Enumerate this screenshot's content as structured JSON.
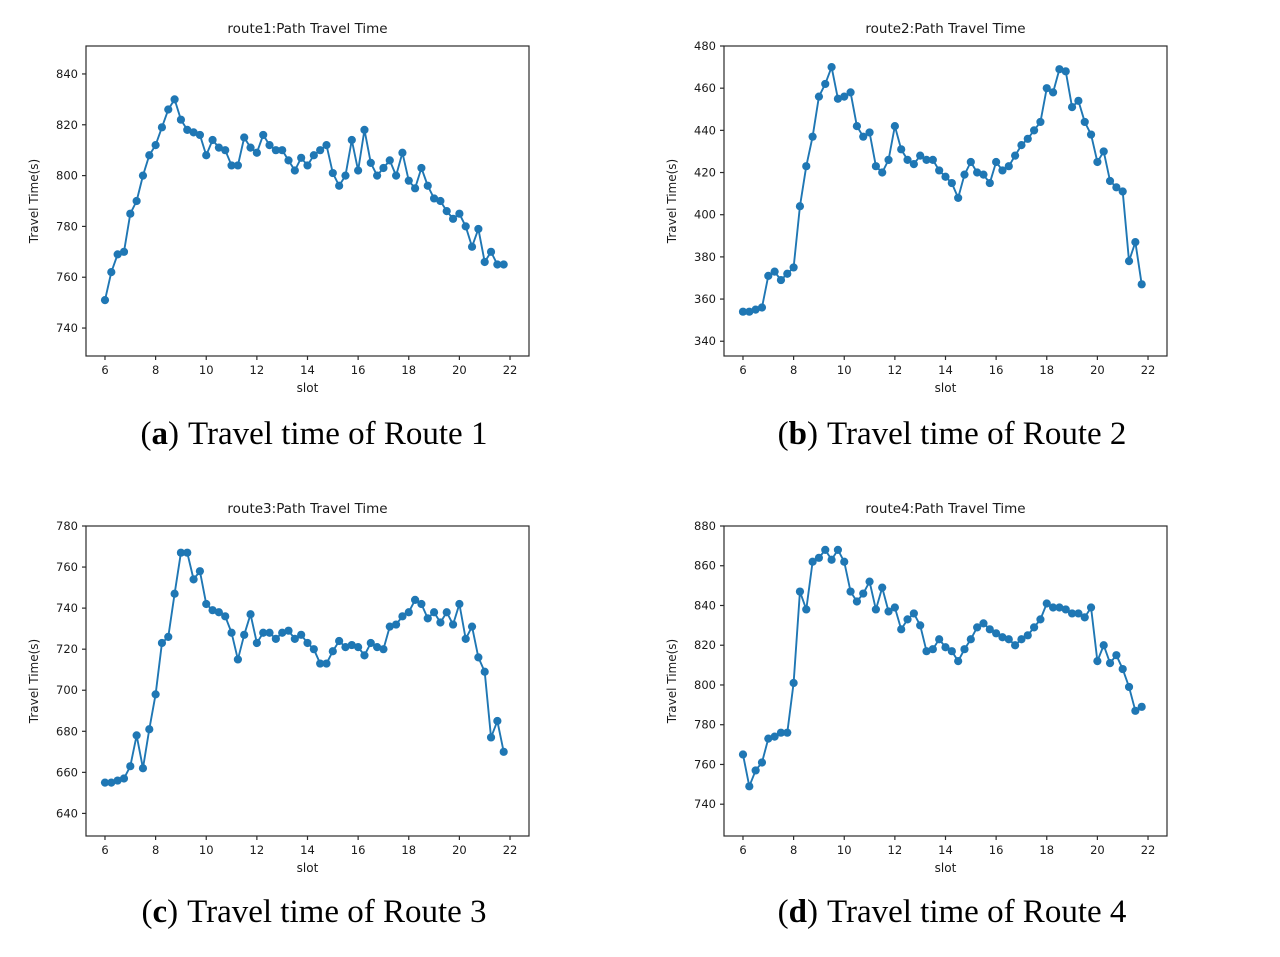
{
  "figure": {
    "captions": [
      {
        "open": "(",
        "letter": "a",
        "close": ")",
        "text": "Travel time of Route 1"
      },
      {
        "open": "(",
        "letter": "b",
        "close": ")",
        "text": "Travel time of Route 2"
      },
      {
        "open": "(",
        "letter": "c",
        "close": ")",
        "text": "Travel time of Route 3"
      },
      {
        "open": "(",
        "letter": "d",
        "close": ")",
        "text": "Travel time of Route 4"
      }
    ]
  },
  "style": {
    "line_color": "#1f77b4",
    "text_color": "#1a1a1a",
    "spine_color": "#2b2b2b",
    "background": "#ffffff"
  },
  "chart_data": [
    {
      "id": "route1",
      "type": "line",
      "title": "route1:Path Travel Time",
      "xlabel": "slot",
      "ylabel": "Travel Time(s)",
      "marker": "circle",
      "grid": false,
      "legend": "none",
      "x_start": 6.0,
      "x_step": 0.25,
      "xlim": [
        5.25,
        22.75
      ],
      "ylim": [
        729,
        851
      ],
      "xticks": [
        6,
        8,
        10,
        12,
        14,
        16,
        18,
        20,
        22
      ],
      "yticks": [
        740,
        760,
        780,
        800,
        820,
        840
      ],
      "values": [
        751,
        762,
        769,
        770,
        785,
        790,
        800,
        808,
        812,
        819,
        826,
        830,
        822,
        818,
        817,
        816,
        808,
        814,
        811,
        810,
        804,
        804,
        815,
        811,
        809,
        816,
        812,
        810,
        810,
        806,
        802,
        807,
        804,
        808,
        810,
        812,
        801,
        796,
        800,
        814,
        802,
        818,
        805,
        800,
        803,
        806,
        800,
        809,
        798,
        795,
        803,
        796,
        791,
        790,
        786,
        783,
        785,
        780,
        772,
        779,
        766,
        770,
        765,
        765
      ]
    },
    {
      "id": "route2",
      "type": "line",
      "title": "route2:Path Travel Time",
      "xlabel": "slot",
      "ylabel": "Travel Time(s)",
      "marker": "circle",
      "grid": false,
      "legend": "none",
      "x_start": 6.0,
      "x_step": 0.25,
      "xlim": [
        5.25,
        22.75
      ],
      "ylim": [
        333,
        480
      ],
      "xticks": [
        6,
        8,
        10,
        12,
        14,
        16,
        18,
        20,
        22
      ],
      "yticks": [
        340,
        360,
        380,
        400,
        420,
        440,
        460,
        480
      ],
      "values": [
        354,
        354,
        355,
        356,
        371,
        373,
        369,
        372,
        375,
        404,
        423,
        437,
        456,
        462,
        470,
        455,
        456,
        458,
        442,
        437,
        439,
        423,
        420,
        426,
        442,
        431,
        426,
        424,
        428,
        426,
        426,
        421,
        418,
        415,
        408,
        419,
        425,
        420,
        419,
        415,
        425,
        421,
        423,
        428,
        433,
        436,
        440,
        444,
        460,
        458,
        469,
        468,
        451,
        454,
        444,
        438,
        425,
        430,
        416,
        413,
        411,
        378,
        387,
        367
      ]
    },
    {
      "id": "route3",
      "type": "line",
      "title": "route3:Path Travel Time",
      "xlabel": "slot",
      "ylabel": "Travel Time(s)",
      "marker": "circle",
      "grid": false,
      "legend": "none",
      "x_start": 6.0,
      "x_step": 0.25,
      "xlim": [
        5.25,
        22.75
      ],
      "ylim": [
        629,
        780
      ],
      "xticks": [
        6,
        8,
        10,
        12,
        14,
        16,
        18,
        20,
        22
      ],
      "yticks": [
        640,
        660,
        680,
        700,
        720,
        740,
        760,
        780
      ],
      "values": [
        655,
        655,
        656,
        657,
        663,
        678,
        662,
        681,
        698,
        723,
        726,
        747,
        767,
        767,
        754,
        758,
        742,
        739,
        738,
        736,
        728,
        715,
        727,
        737,
        723,
        728,
        728,
        725,
        728,
        729,
        725,
        727,
        723,
        720,
        713,
        713,
        719,
        724,
        721,
        722,
        721,
        717,
        723,
        721,
        720,
        731,
        732,
        736,
        738,
        744,
        742,
        735,
        738,
        733,
        738,
        732,
        742,
        725,
        731,
        716,
        709,
        677,
        685,
        670
      ]
    },
    {
      "id": "route4",
      "type": "line",
      "title": "route4:Path Travel Time",
      "xlabel": "slot",
      "ylabel": "Travel Time(s)",
      "marker": "circle",
      "grid": false,
      "legend": "none",
      "x_start": 6.0,
      "x_step": 0.25,
      "xlim": [
        5.25,
        22.75
      ],
      "ylim": [
        724,
        880
      ],
      "xticks": [
        6,
        8,
        10,
        12,
        14,
        16,
        18,
        20,
        22
      ],
      "yticks": [
        740,
        760,
        780,
        800,
        820,
        840,
        860,
        880
      ],
      "values": [
        765,
        749,
        757,
        761,
        773,
        774,
        776,
        776,
        801,
        847,
        838,
        862,
        864,
        868,
        863,
        868,
        862,
        847,
        842,
        846,
        852,
        838,
        849,
        837,
        839,
        828,
        833,
        836,
        830,
        817,
        818,
        823,
        819,
        817,
        812,
        818,
        823,
        829,
        831,
        828,
        826,
        824,
        823,
        820,
        823,
        825,
        829,
        833,
        841,
        839,
        839,
        838,
        836,
        836,
        834,
        839,
        812,
        820,
        811,
        815,
        808,
        799,
        787,
        789
      ]
    }
  ]
}
